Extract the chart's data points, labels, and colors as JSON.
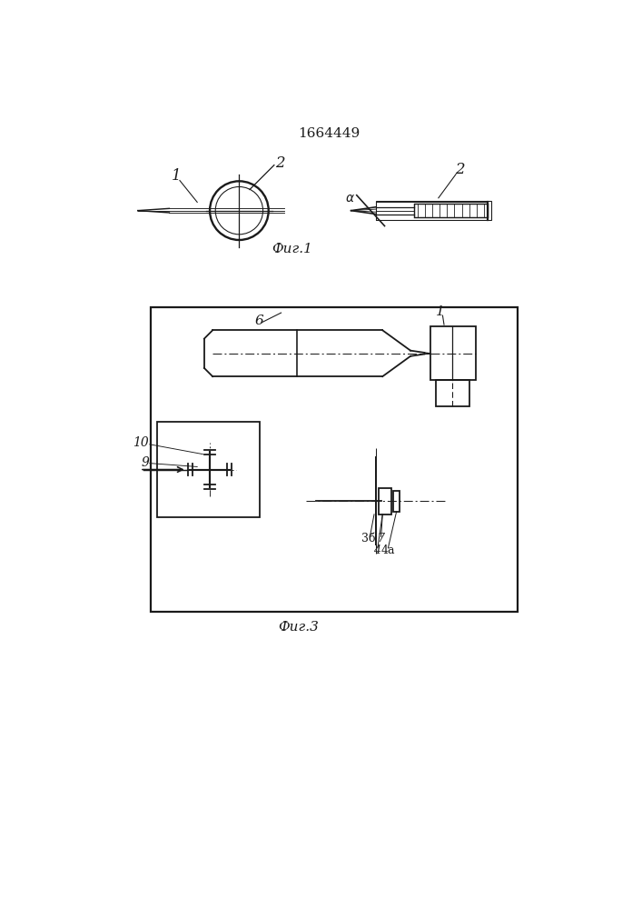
{
  "title": "1664449",
  "fig1_label": "Фиг.1",
  "fig3_label": "Фиг.3",
  "bg_color": "#ffffff",
  "line_color": "#1a1a1a",
  "line_width": 1.3
}
